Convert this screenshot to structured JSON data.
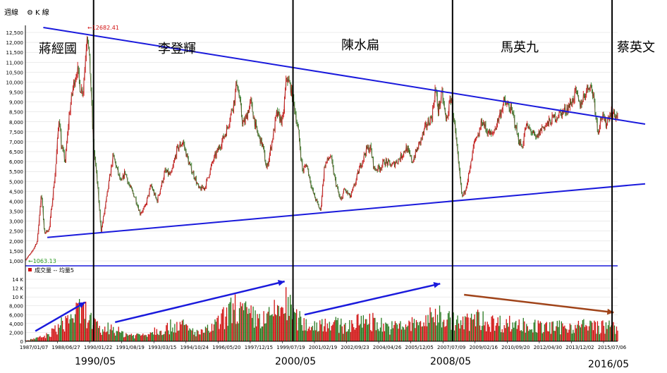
{
  "header": {
    "period": "週線",
    "chart_type": "K 線"
  },
  "volume_legend": "成交量 -- 均量5",
  "annotations": {
    "high_label": "12682.41",
    "low_label": "1063.13"
  },
  "eras": [
    {
      "name": "蔣經國"
    },
    {
      "name": "李登輝"
    },
    {
      "name": "陳水扁"
    },
    {
      "name": "馬英九"
    },
    {
      "name": "蔡英文"
    }
  ],
  "boundary_labels": [
    "1990/05",
    "2000/05",
    "2008/05",
    "2016/05"
  ],
  "chart_data": {
    "type": "line",
    "price_axis": {
      "ylim": [
        1000,
        12500
      ],
      "ticks": [
        "1,000",
        "1,500",
        "2,000",
        "2,500",
        "3,000",
        "3,500",
        "4,000",
        "4,500",
        "5,000",
        "5,500",
        "6,000",
        "6,500",
        "7,000",
        "7,500",
        "8,000",
        "8,500",
        "9,000",
        "9,500",
        "10,000",
        "10,500",
        "11,000",
        "11,500",
        "12,000",
        "12,500"
      ]
    },
    "volume_axis": {
      "ylim": [
        0,
        14000
      ],
      "ticks": [
        "0",
        "2,000",
        "4,000",
        "6,000",
        "8,000",
        "10 K",
        "12 K",
        "14 K"
      ]
    },
    "x_ticks": [
      "1987/01/07",
      "1988/06/27",
      "1990/01/22",
      "1991/08/19",
      "1993/03/15",
      "1994/10/24",
      "1996/05/20",
      "1997/12/15",
      "1999/07/19",
      "2001/02/19",
      "2002/09/23",
      "2004/04/26",
      "2005/12/05",
      "2007/07/09",
      "2009/02/16",
      "2010/09/20",
      "2012/04/30",
      "2013/12/02",
      "2015/07/06"
    ],
    "x_range": [
      1987.0,
      2016.7
    ],
    "price_series": [
      [
        1987.0,
        1063
      ],
      [
        1987.3,
        1400
      ],
      [
        1987.6,
        2000
      ],
      [
        1987.8,
        4500
      ],
      [
        1987.95,
        2400
      ],
      [
        1988.2,
        2600
      ],
      [
        1988.5,
        5500
      ],
      [
        1988.7,
        8400
      ],
      [
        1988.8,
        6800
      ],
      [
        1989.0,
        6000
      ],
      [
        1989.2,
        8400
      ],
      [
        1989.4,
        9800
      ],
      [
        1989.6,
        10700
      ],
      [
        1989.75,
        9700
      ],
      [
        1989.9,
        9600
      ],
      [
        1990.1,
        12682
      ],
      [
        1990.25,
        10500
      ],
      [
        1990.4,
        7000
      ],
      [
        1990.6,
        5000
      ],
      [
        1990.8,
        2485
      ],
      [
        1991.0,
        3700
      ],
      [
        1991.2,
        5000
      ],
      [
        1991.4,
        6300
      ],
      [
        1991.6,
        5600
      ],
      [
        1991.8,
        4900
      ],
      [
        1992.0,
        5500
      ],
      [
        1992.2,
        4800
      ],
      [
        1992.5,
        4200
      ],
      [
        1992.75,
        3400
      ],
      [
        1993.0,
        3700
      ],
      [
        1993.3,
        4800
      ],
      [
        1993.6,
        4000
      ],
      [
        1994.0,
        5500
      ],
      [
        1994.3,
        5300
      ],
      [
        1994.6,
        6600
      ],
      [
        1994.9,
        7000
      ],
      [
        1995.2,
        5900
      ],
      [
        1995.5,
        5200
      ],
      [
        1995.7,
        4600
      ],
      [
        1996.0,
        4700
      ],
      [
        1996.4,
        6000
      ],
      [
        1996.8,
        6900
      ],
      [
        1997.1,
        7600
      ],
      [
        1997.5,
        9200
      ],
      [
        1997.6,
        10100
      ],
      [
        1997.9,
        7900
      ],
      [
        1998.0,
        8000
      ],
      [
        1998.3,
        9000
      ],
      [
        1998.6,
        7500
      ],
      [
        1998.9,
        6800
      ],
      [
        1999.1,
        5600
      ],
      [
        1999.4,
        7200
      ],
      [
        1999.6,
        8400
      ],
      [
        1999.9,
        8000
      ],
      [
        2000.1,
        10300
      ],
      [
        2000.3,
        9700
      ],
      [
        2000.5,
        8700
      ],
      [
        2000.7,
        7400
      ],
      [
        2000.9,
        5500
      ],
      [
        2001.1,
        5900
      ],
      [
        2001.4,
        4500
      ],
      [
        2001.6,
        4000
      ],
      [
        2001.8,
        3500
      ],
      [
        2002.0,
        5800
      ],
      [
        2002.3,
        6300
      ],
      [
        2002.5,
        5200
      ],
      [
        2002.8,
        4000
      ],
      [
        2003.0,
        4600
      ],
      [
        2003.3,
        4200
      ],
      [
        2003.5,
        4800
      ],
      [
        2003.8,
        5800
      ],
      [
        2004.1,
        6600
      ],
      [
        2004.3,
        6700
      ],
      [
        2004.5,
        5600
      ],
      [
        2004.8,
        5700
      ],
      [
        2005.0,
        6000
      ],
      [
        2005.4,
        5800
      ],
      [
        2005.8,
        6200
      ],
      [
        2006.1,
        6700
      ],
      [
        2006.4,
        6000
      ],
      [
        2006.8,
        7000
      ],
      [
        2007.1,
        7800
      ],
      [
        2007.4,
        8300
      ],
      [
        2007.55,
        9700
      ],
      [
        2007.7,
        8600
      ],
      [
        2007.9,
        9400
      ],
      [
        2008.1,
        8000
      ],
      [
        2008.35,
        9300
      ],
      [
        2008.5,
        8100
      ],
      [
        2008.7,
        6000
      ],
      [
        2008.9,
        4200
      ],
      [
        2009.0,
        4400
      ],
      [
        2009.3,
        5600
      ],
      [
        2009.5,
        6900
      ],
      [
        2009.7,
        7200
      ],
      [
        2009.9,
        8100
      ],
      [
        2010.1,
        7600
      ],
      [
        2010.4,
        7300
      ],
      [
        2010.6,
        7800
      ],
      [
        2010.8,
        8400
      ],
      [
        2011.0,
        9000
      ],
      [
        2011.3,
        8700
      ],
      [
        2011.5,
        8200
      ],
      [
        2011.7,
        7200
      ],
      [
        2011.9,
        6700
      ],
      [
        2012.1,
        7800
      ],
      [
        2012.4,
        7500
      ],
      [
        2012.6,
        7100
      ],
      [
        2012.9,
        7700
      ],
      [
        2013.2,
        7900
      ],
      [
        2013.5,
        8200
      ],
      [
        2013.8,
        8400
      ],
      [
        2014.1,
        8600
      ],
      [
        2014.4,
        9000
      ],
      [
        2014.6,
        9500
      ],
      [
        2014.8,
        8800
      ],
      [
        2015.0,
        9300
      ],
      [
        2015.3,
        9900
      ],
      [
        2015.5,
        9300
      ],
      [
        2015.7,
        7500
      ],
      [
        2015.9,
        8300
      ],
      [
        2016.1,
        7900
      ],
      [
        2016.35,
        8500
      ],
      [
        2016.6,
        8300
      ]
    ],
    "trend_lines": [
      {
        "name": "upper",
        "from": [
          1987.9,
          12750
        ],
        "to": [
          2016.75,
          8100
        ]
      },
      {
        "name": "lower",
        "from": [
          1988.1,
          2180
        ],
        "to": [
          2016.75,
          4760
        ]
      }
    ],
    "volume_trend_arrows": [
      {
        "from": [
          1987.5,
          2300
        ],
        "to": [
          1990.0,
          8800
        ]
      },
      {
        "from": [
          1991.5,
          4300
        ],
        "to": [
          2000.0,
          13500
        ]
      },
      {
        "from": [
          2001.0,
          6000
        ],
        "to": [
          2007.8,
          13000
        ]
      },
      {
        "from": [
          2009.0,
          10500
        ],
        "to": [
          2016.5,
          6500
        ]
      }
    ],
    "volume_trend_colors": [
      "#1a1adc",
      "#1a1adc",
      "#1a1adc",
      "#a0441a"
    ],
    "volume_envelope": [
      [
        1987.0,
        200
      ],
      [
        1987.5,
        800
      ],
      [
        1988.0,
        1500
      ],
      [
        1988.5,
        3500
      ],
      [
        1989.0,
        6000
      ],
      [
        1989.5,
        8500
      ],
      [
        1990.0,
        9000
      ],
      [
        1990.4,
        5500
      ],
      [
        1990.8,
        3000
      ],
      [
        1991.3,
        4500
      ],
      [
        1991.8,
        2500
      ],
      [
        1992.5,
        1800
      ],
      [
        1993.0,
        2200
      ],
      [
        1993.5,
        3500
      ],
      [
        1994.0,
        3800
      ],
      [
        1994.7,
        5500
      ],
      [
        1995.3,
        3200
      ],
      [
        1995.8,
        2500
      ],
      [
        1996.4,
        4200
      ],
      [
        1997.0,
        7500
      ],
      [
        1997.5,
        10500
      ],
      [
        1998.0,
        8500
      ],
      [
        1998.6,
        7000
      ],
      [
        1999.1,
        6500
      ],
      [
        1999.6,
        9500
      ],
      [
        2000.1,
        11500
      ],
      [
        2000.6,
        7000
      ],
      [
        2001.0,
        5200
      ],
      [
        2001.5,
        4800
      ],
      [
        2002.0,
        6000
      ],
      [
        2002.5,
        5200
      ],
      [
        2003.0,
        4500
      ],
      [
        2003.6,
        5500
      ],
      [
        2004.1,
        7000
      ],
      [
        2004.6,
        5600
      ],
      [
        2005.3,
        4200
      ],
      [
        2006.0,
        4800
      ],
      [
        2006.6,
        5400
      ],
      [
        2007.2,
        6500
      ],
      [
        2007.6,
        8500
      ],
      [
        2008.1,
        7000
      ],
      [
        2008.6,
        6000
      ],
      [
        2009.0,
        5400
      ],
      [
        2009.5,
        7200
      ],
      [
        2010.0,
        6200
      ],
      [
        2010.6,
        5600
      ],
      [
        2011.2,
        5500
      ],
      [
        2011.8,
        5200
      ],
      [
        2012.4,
        4600
      ],
      [
        2013.0,
        4300
      ],
      [
        2013.6,
        4200
      ],
      [
        2014.2,
        4600
      ],
      [
        2014.8,
        4700
      ],
      [
        2015.4,
        4800
      ],
      [
        2016.0,
        4400
      ],
      [
        2016.6,
        4200
      ]
    ],
    "colors": {
      "up": "#d11111",
      "down": "#2a7a22",
      "axis": "#000000",
      "grid": "#d8d8d8",
      "trend": "#1a1adc",
      "vol_down_trend": "#a0441a",
      "high_label": "#d11111",
      "low_label": "#2a9a22"
    }
  }
}
